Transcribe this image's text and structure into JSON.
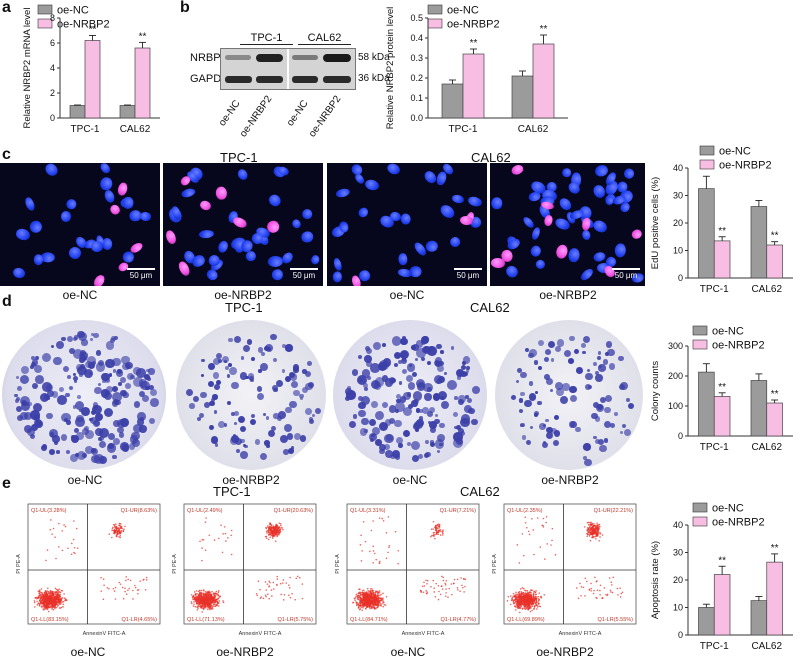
{
  "colors": {
    "nc": "#9b9b9b",
    "nrbp2": "#f8bde3",
    "axis": "#333333",
    "cell": "#1f3ff0",
    "edu": "#f04fe0",
    "colony": "#3b3fa8",
    "dot": "#e8322a"
  },
  "legend": {
    "nc": "oe-NC",
    "nrbp2": "oe-NRBP2"
  },
  "groups": [
    "TPC-1",
    "CAL62"
  ],
  "panels": {
    "a": "a",
    "b": "b",
    "c": "c",
    "d": "d",
    "e": "e"
  },
  "sig": "**",
  "chart_data": [
    {
      "id": "a",
      "type": "bar",
      "categories": [
        "TPC-1",
        "CAL62"
      ],
      "series": [
        {
          "name": "oe-NC",
          "values": [
            1.0,
            1.0
          ],
          "errors": [
            0.04,
            0.04
          ]
        },
        {
          "name": "oe-NRBP2",
          "values": [
            6.2,
            5.6
          ],
          "errors": [
            0.4,
            0.45
          ]
        }
      ],
      "ylabel": "Relative NRBP2 mRNA level",
      "ylim": [
        0,
        8
      ],
      "ticks": [
        0,
        2,
        4,
        6,
        8
      ]
    },
    {
      "id": "b",
      "type": "bar",
      "categories": [
        "TPC-1",
        "CAL62"
      ],
      "series": [
        {
          "name": "oe-NC",
          "values": [
            0.17,
            0.21
          ],
          "errors": [
            0.02,
            0.025
          ]
        },
        {
          "name": "oe-NRBP2",
          "values": [
            0.32,
            0.37
          ],
          "errors": [
            0.025,
            0.045
          ]
        }
      ],
      "ylabel": "Relative NRBP2 protein level",
      "ylim": [
        0,
        0.5
      ],
      "ticks": [
        0.0,
        0.1,
        0.2,
        0.3,
        0.4,
        0.5
      ]
    },
    {
      "id": "c",
      "type": "bar",
      "categories": [
        "TPC-1",
        "CAL62"
      ],
      "series": [
        {
          "name": "oe-NC",
          "values": [
            32.5,
            26
          ],
          "errors": [
            4.5,
            2.2
          ]
        },
        {
          "name": "oe-NRBP2",
          "values": [
            13.5,
            12
          ],
          "errors": [
            1.5,
            1.2
          ]
        }
      ],
      "ylabel": "EdU positive cells (%)",
      "ylim": [
        0,
        40
      ],
      "ticks": [
        0,
        10,
        20,
        30,
        40
      ]
    },
    {
      "id": "d",
      "type": "bar",
      "categories": [
        "TPC-1",
        "CAL62"
      ],
      "series": [
        {
          "name": "oe-NC",
          "values": [
            213,
            185
          ],
          "errors": [
            28,
            22
          ]
        },
        {
          "name": "oe-NRBP2",
          "values": [
            132,
            110
          ],
          "errors": [
            12,
            10
          ]
        }
      ],
      "ylabel": "Colony counts",
      "ylim": [
        0,
        300
      ],
      "ticks": [
        0,
        100,
        200,
        300
      ]
    },
    {
      "id": "e",
      "type": "bar",
      "categories": [
        "TPC-1",
        "CAL62"
      ],
      "series": [
        {
          "name": "oe-NC",
          "values": [
            10,
            12.5
          ],
          "errors": [
            1.2,
            1.5
          ]
        },
        {
          "name": "oe-NRBP2",
          "values": [
            22,
            26.5
          ],
          "errors": [
            3,
            3
          ]
        }
      ],
      "ylabel": "Apoptosis rate (%)",
      "ylim": [
        0,
        40
      ],
      "ticks": [
        0,
        10,
        20,
        30,
        40
      ]
    }
  ],
  "western": {
    "headers": [
      "TPC-1",
      "CAL62"
    ],
    "rows": [
      "NRBP2",
      "GAPDH"
    ],
    "kda": [
      "58 kDa",
      "36 kDa"
    ],
    "lanes": [
      "oe-NC",
      "oe-NRBP2",
      "oe-NC",
      "oe-NRBP2"
    ]
  },
  "edu": {
    "titles": [
      "TPC-1",
      "CAL62"
    ],
    "labels": [
      "oe-NC",
      "oe-NRBP2",
      "oe-NC",
      "oe-NRBP2"
    ],
    "scale": "50 μm"
  },
  "colony": {
    "titles": [
      "TPC-1",
      "CAL62"
    ],
    "labels": [
      "oe-NC",
      "oe-NRBP2",
      "oe-NC",
      "oe-NRBP2"
    ]
  },
  "flow": {
    "titles": [
      "TPC-1",
      "CAL62"
    ],
    "labels": [
      "oe-NC",
      "oe-NRBP2",
      "oe-NC",
      "oe-NRBP2"
    ],
    "xaxis": "AnnexinV FITC-A",
    "yaxis": "PI PE-A",
    "quadrants": [
      [
        "Q1-UL(3.28%)",
        "Q1-UR(8.63%)",
        "Q1-LL(83.15%)",
        "Q1-LR(4.65%)"
      ],
      [
        "Q1-UL(2.49%)",
        "Q1-UR(20.63%)",
        "Q1-LL(71.13%)",
        "Q1-LR(5.75%)"
      ],
      [
        "Q1-UL(3.31%)",
        "Q1-UR(7.21%)",
        "Q1-LL(84.71%)",
        "Q1-LR(4.77%)"
      ],
      [
        "Q1-UL(2.35%)",
        "Q1-UR(22.21%)",
        "Q1-LL(69.89%)",
        "Q1-LR(5.55%)"
      ]
    ]
  }
}
